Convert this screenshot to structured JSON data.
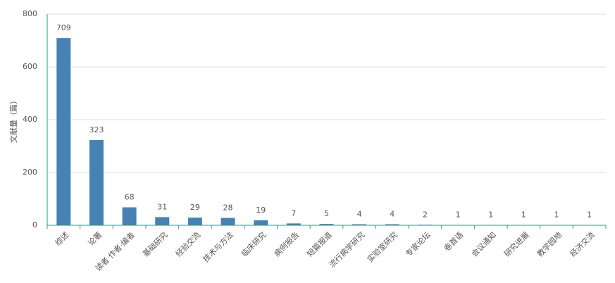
{
  "chart_data": {
    "type": "bar",
    "y_label": "文献量（篇）",
    "categories": [
      "综述",
      "论著",
      "读者·作者·编者",
      "基础研究",
      "经验交流",
      "技术与方法",
      "临床研究",
      "病例报告",
      "短篇报道",
      "流行病学研究",
      "实验室研究",
      "专家论坛",
      "卷首语",
      "会议通知",
      "研究进展",
      "教学园地",
      "经济交流"
    ],
    "values": [
      709,
      323,
      68,
      31,
      29,
      28,
      19,
      7,
      5,
      4,
      4,
      2,
      1,
      1,
      1,
      1,
      1
    ],
    "color": "#4682b4",
    "ylim": [
      0,
      800
    ],
    "yticks": [
      0,
      200,
      400,
      600,
      800
    ],
    "grid": true
  }
}
